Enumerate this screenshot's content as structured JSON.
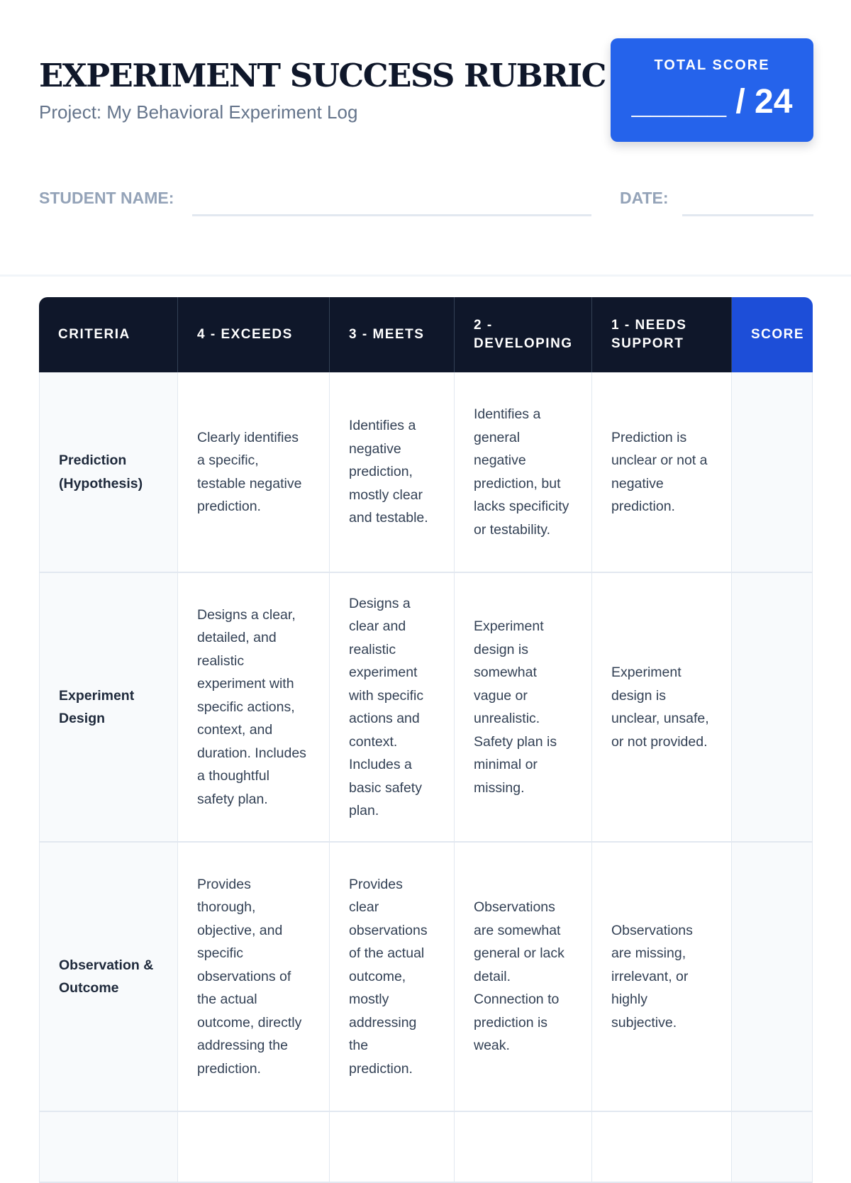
{
  "header": {
    "title": "EXPERIMENT SUCCESS RUBRIC",
    "subtitle": "Project: My Behavioral Experiment Log"
  },
  "total_score": {
    "label": "TOTAL SCORE",
    "value": "_____ / 24"
  },
  "fields": {
    "student_name_label": "STUDENT NAME:",
    "date_label": "DATE:"
  },
  "table": {
    "columns": [
      "CRITERIA",
      "4 - EXCEEDS",
      "3 - MEETS",
      "2 - DEVELOPING",
      "1 - NEEDS SUPPORT",
      "SCORE"
    ],
    "rows": [
      {
        "criteria": "Prediction (Hypothesis)",
        "exceeds": "Clearly identifies a specific, testable negative prediction.",
        "meets": "Identifies a negative prediction, mostly clear and testable.",
        "developing": "Identifies a general negative prediction, but lacks specificity or testability.",
        "needs_support": "Prediction is unclear or not a negative prediction.",
        "score": ""
      },
      {
        "criteria": "Experiment Design",
        "exceeds": "Designs a clear, detailed, and realistic experiment with specific actions, context, and duration. Includes a thoughtful safety plan.",
        "meets": "Designs a clear and realistic experiment with specific actions and context. Includes a basic safety plan.",
        "developing": "Experiment design is somewhat vague or unrealistic. Safety plan is minimal or missing.",
        "needs_support": "Experiment design is unclear, unsafe, or not provided.",
        "score": ""
      },
      {
        "criteria": "Observation & Outcome",
        "exceeds": "Provides thorough, objective, and specific observations of the actual outcome, directly addressing the prediction.",
        "meets": "Provides clear observations of the actual outcome, mostly addressing the prediction.",
        "developing": "Observations are somewhat general or lack detail. Connection to prediction is weak.",
        "needs_support": "Observations are missing, irrelevant, or highly subjective.",
        "score": ""
      }
    ]
  },
  "colors": {
    "accent": "#2563eb",
    "header_bg": "#0f172a",
    "score_header": "#1d4ed8"
  }
}
